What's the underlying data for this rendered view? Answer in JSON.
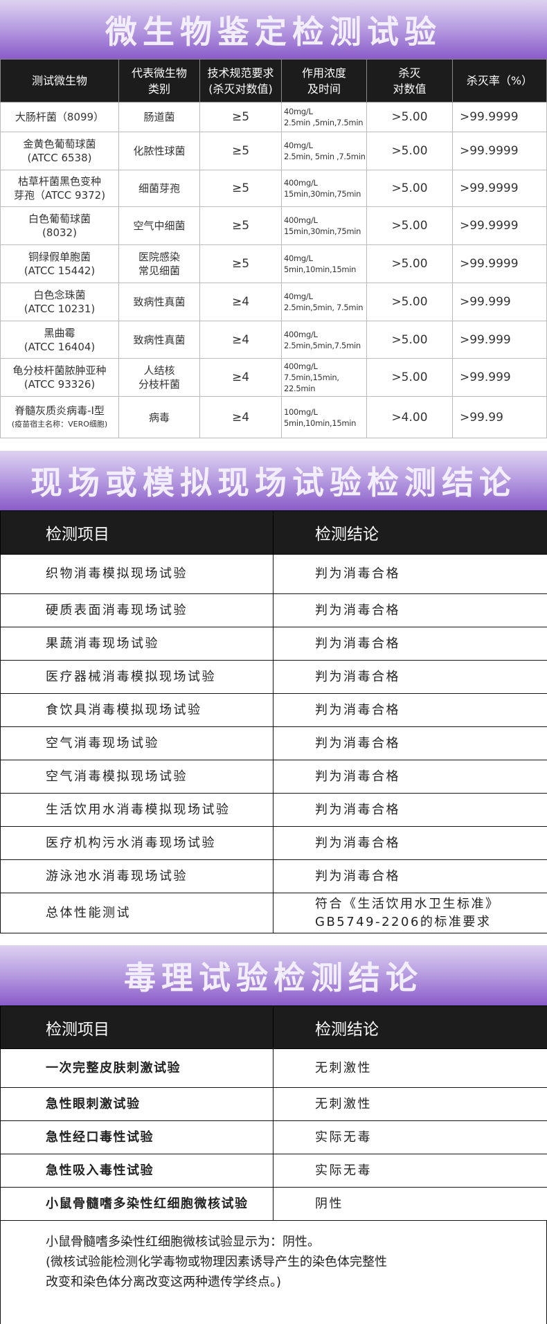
{
  "section1": {
    "title": "微生物鉴定检测试验",
    "headers": [
      "测试微生物",
      "代表微生物类别",
      "技术规范要求（杀灭对数值）",
      "作用浓度及时间",
      "杀灭对数值",
      "杀灭率（%）"
    ],
    "header_lines": [
      [
        "测试微生物"
      ],
      [
        "代表微生物",
        "类别"
      ],
      [
        "技术规范要求",
        "(杀灭对数值)"
      ],
      [
        "作用浓度",
        "及时间"
      ],
      [
        "杀灭",
        "对数值"
      ],
      [
        "杀灭率（%）"
      ]
    ],
    "rows": [
      {
        "organism": [
          "大肠杆菌（8099）"
        ],
        "category": [
          "肠道菌"
        ],
        "requirement": "≥5",
        "concentration": [
          "40mg/L",
          "2.5min ,5min,7.5min"
        ],
        "log": ">5.00",
        "rate": ">99.9999"
      },
      {
        "organism": [
          "金黄色葡萄球菌",
          "(ATCC 6538)"
        ],
        "category": [
          "化脓性球菌"
        ],
        "requirement": "≥5",
        "concentration": [
          "40mg/L",
          "2.5min, 5min ,7.5min"
        ],
        "log": ">5.00",
        "rate": ">99.9999"
      },
      {
        "organism": [
          "枯草杆菌黑色变种",
          "芽孢（ATCC 9372)"
        ],
        "category": [
          "细菌芽孢"
        ],
        "requirement": "≥5",
        "concentration": [
          "400mg/L",
          "15min,30min,75min"
        ],
        "log": ">5.00",
        "rate": ">99.9999"
      },
      {
        "organism": [
          "白色葡萄球菌",
          "(8032)"
        ],
        "category": [
          "空气中细菌"
        ],
        "requirement": "≥5",
        "concentration": [
          "400mg/L",
          "15min,30min,75min"
        ],
        "log": ">5.00",
        "rate": ">99.9999"
      },
      {
        "organism": [
          "铜绿假单胞菌",
          "(ATCC 15442)"
        ],
        "category": [
          "医院感染",
          "常见细菌"
        ],
        "requirement": "≥5",
        "concentration": [
          "40mg/L",
          "5min,10min,15min"
        ],
        "log": ">5.00",
        "rate": ">99.9999"
      },
      {
        "organism": [
          "白色念珠菌",
          "(ATCC 10231)"
        ],
        "category": [
          "致病性真菌"
        ],
        "requirement": "≥4",
        "concentration": [
          "40mg/L",
          "2.5min,5min, 7.5min"
        ],
        "log": ">5.00",
        "rate": ">99.999"
      },
      {
        "organism": [
          "黑曲霉",
          "(ATCC 16404)"
        ],
        "category": [
          "致病性真菌"
        ],
        "requirement": "≥4",
        "concentration": [
          "400mg/L",
          "2.5min,5min,7.5min"
        ],
        "log": ">5.00",
        "rate": ">99.999"
      },
      {
        "organism": [
          "龟分枝杆菌脓肿亚种",
          "(ATCC 93326)"
        ],
        "category": [
          "人结核",
          "分枝杆菌"
        ],
        "requirement": "≥4",
        "concentration": [
          "400mg/L",
          "7.5min,15min,",
          "22.5min"
        ],
        "log": ">5.00",
        "rate": ">99.999"
      },
      {
        "organism": [
          "脊髓灰质炎病毒-I型"
        ],
        "organism_note": "(疫苗宿主名称：VERO细胞)",
        "category": [
          "病毒"
        ],
        "requirement": "≥4",
        "concentration": [
          "100mg/L",
          "5min,10min,15min"
        ],
        "log": ">4.00",
        "rate": ">99.99"
      }
    ]
  },
  "section2": {
    "title": "现场或模拟现场试验检测结论",
    "headers": [
      "检测项目",
      "检测结论"
    ],
    "rows": [
      {
        "item": "织物消毒模拟现场试验",
        "result": "判为消毒合格"
      },
      {
        "item": "硬质表面消毒现场试验",
        "result": "判为消毒合格"
      },
      {
        "item": "果蔬消毒现场试验",
        "result": "判为消毒合格"
      },
      {
        "item": "医疗器械消毒模拟现场试验",
        "result": "判为消毒合格"
      },
      {
        "item": "食饮具消毒模拟现场试验",
        "result": "判为消毒合格"
      },
      {
        "item": "空气消毒现场试验",
        "result": "判为消毒合格"
      },
      {
        "item": "空气消毒模拟现场试验",
        "result": "判为消毒合格"
      },
      {
        "item": "生活饮用水消毒模拟现场试验",
        "result": "判为消毒合格"
      },
      {
        "item": "医疗机构污水消毒现场试验",
        "result": "判为消毒合格"
      },
      {
        "item": "游泳池水消毒现场试验",
        "result": "判为消毒合格"
      },
      {
        "item": "总体性能测试",
        "result": "符合《生活饮用水卫生标准》",
        "result_line2": "GB5749-2206的标准要求"
      }
    ]
  },
  "section3": {
    "title": "毒理试验检测结论",
    "headers": [
      "检测项目",
      "检测结论"
    ],
    "rows": [
      {
        "item": "一次完整皮肤刺激试验",
        "result": "无刺激性"
      },
      {
        "item": "急性眼刺激试验",
        "result": "无刺激性"
      },
      {
        "item": "急性经口毒性试验",
        "result": "实际无毒"
      },
      {
        "item": "急性吸入毒性试验",
        "result": "实际无毒"
      },
      {
        "item": "小鼠骨髓嗜多染性红细胞微核试验",
        "result": "阴性"
      }
    ],
    "note": [
      "小鼠骨髓嗜多染性红细胞微核试验显示为：阴性。",
      "(微核试验能检测化学毒物或物理因素诱导产生的染色体完整性",
      "改变和染色体分离改变这两种遗传学终点。)"
    ]
  },
  "colors": {
    "banner_top": "#ddd2f1",
    "banner_bottom": "#8a5bc9",
    "header_bg": "#1c1c1c"
  }
}
